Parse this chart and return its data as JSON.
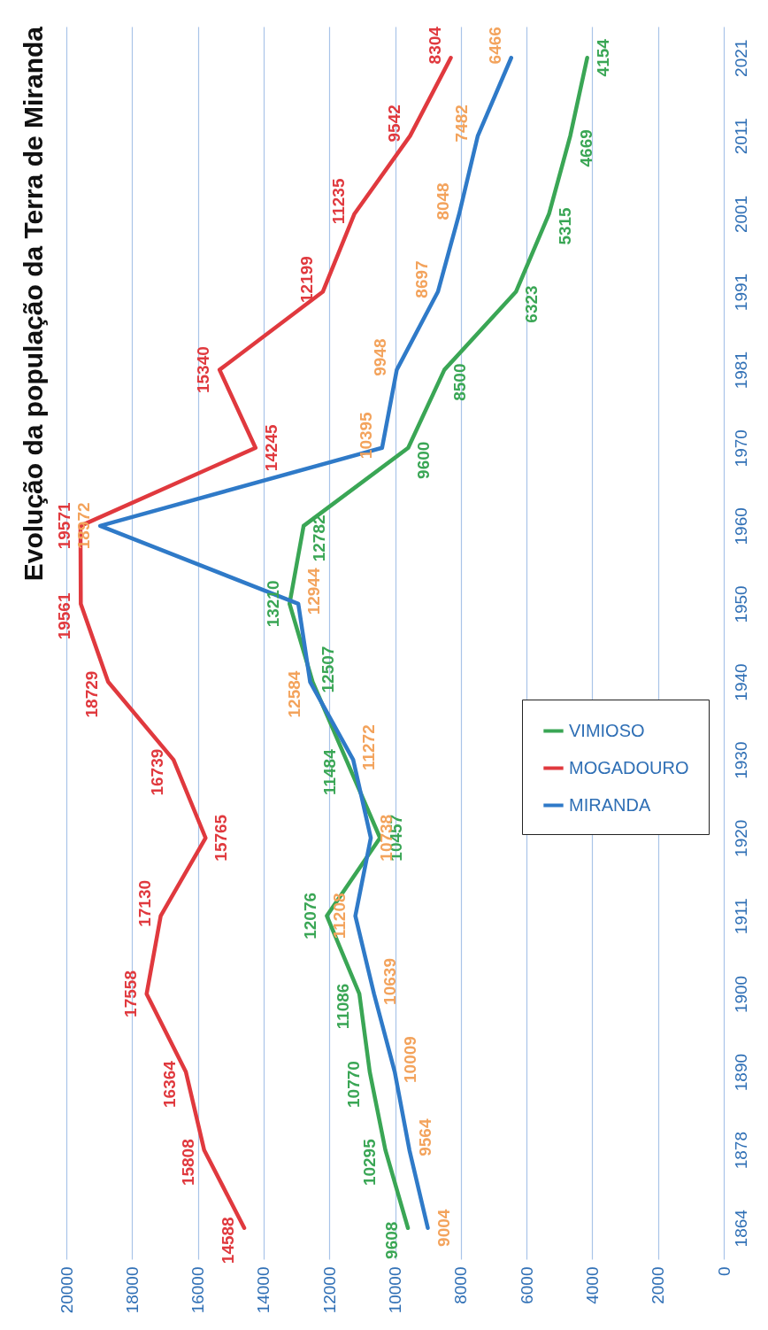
{
  "chart_data": {
    "type": "line",
    "title": "Evolução da população da Terra de Miranda",
    "categories": [
      "2021",
      "2011",
      "2001",
      "1991",
      "1981",
      "1970",
      "1960",
      "1950",
      "1940",
      "1930",
      "1920",
      "1911",
      "1900",
      "1890",
      "1878",
      "1864"
    ],
    "series": [
      {
        "name": "VIMIOSO",
        "color": "#3aa655",
        "values": [
          4154,
          4669,
          5315,
          6323,
          8500,
          9600,
          12782,
          13210,
          12507,
          11484,
          10457,
          12076,
          11086,
          10770,
          10295,
          9608
        ]
      },
      {
        "name": "MOGADOURO",
        "color": "#e0393e",
        "values": [
          8304,
          9542,
          11235,
          12199,
          15340,
          14245,
          19571,
          19561,
          18729,
          16739,
          15765,
          17130,
          17558,
          16364,
          15808,
          14588
        ]
      },
      {
        "name": "MIRANDA",
        "color": "#2f7ac8",
        "values": [
          6466,
          7482,
          8048,
          8697,
          9948,
          10395,
          18972,
          12944,
          12584,
          11272,
          10738,
          11208,
          10639,
          10009,
          9564,
          9004
        ]
      }
    ],
    "orientation": "horizontal",
    "xlim": [
      20000,
      0
    ],
    "xticks": [
      0,
      2000,
      4000,
      6000,
      8000,
      10000,
      12000,
      14000,
      16000,
      18000,
      20000
    ],
    "grid": "x",
    "legend": "right",
    "marker": "none",
    "line_style": "solid",
    "data_labels": true
  }
}
